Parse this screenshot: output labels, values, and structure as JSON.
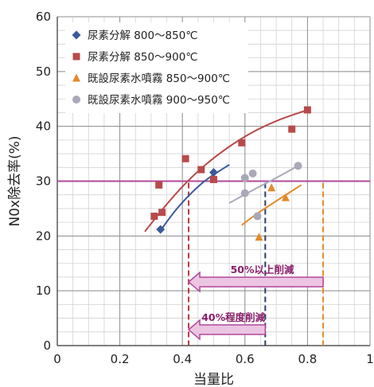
{
  "chart_data": {
    "type": "scatter",
    "xlabel": "当量比",
    "ylabel": "N0x除去率(%)",
    "xlim": [
      0,
      1
    ],
    "ylim": [
      0,
      60
    ],
    "x_ticks": [
      "0",
      "0.2",
      "0.4",
      "0.6",
      "0.8",
      "1"
    ],
    "y_ticks": [
      "0",
      "10",
      "20",
      "30",
      "40",
      "50",
      "60"
    ],
    "grid": true,
    "legend_position": "top-left",
    "series": [
      {
        "name": "尿素分解 800～850℃",
        "marker": "diamond",
        "color": "#3b5a9a",
        "points": [
          [
            0.33,
            21.2
          ],
          [
            0.5,
            31.6
          ]
        ],
        "trend": [
          [
            0.33,
            21.0
          ],
          [
            0.38,
            24.8
          ],
          [
            0.43,
            27.9
          ],
          [
            0.48,
            30.4
          ],
          [
            0.55,
            33.0
          ]
        ]
      },
      {
        "name": "尿素分解 850～900℃",
        "marker": "square",
        "color": "#b84a4a",
        "points": [
          [
            0.31,
            23.6
          ],
          [
            0.325,
            29.3
          ],
          [
            0.335,
            24.3
          ],
          [
            0.41,
            34.1
          ],
          [
            0.46,
            32.1
          ],
          [
            0.5,
            30.3
          ],
          [
            0.59,
            37.0
          ],
          [
            0.75,
            39.5
          ],
          [
            0.8,
            43.0
          ]
        ],
        "trend": [
          [
            0.28,
            20.8
          ],
          [
            0.34,
            25.1
          ],
          [
            0.4,
            29.0
          ],
          [
            0.47,
            32.8
          ],
          [
            0.55,
            36.3
          ],
          [
            0.63,
            39.1
          ],
          [
            0.71,
            41.2
          ],
          [
            0.79,
            42.8
          ]
        ]
      },
      {
        "name": "既設尿素水噴霧 850～900℃",
        "marker": "triangle",
        "color": "#e48a2a",
        "points": [
          [
            0.645,
            19.8
          ],
          [
            0.685,
            28.8
          ],
          [
            0.73,
            27.0
          ]
        ],
        "trend": [
          [
            0.59,
            22.0
          ],
          [
            0.65,
            24.5
          ],
          [
            0.72,
            27.1
          ],
          [
            0.78,
            29.3
          ]
        ]
      },
      {
        "name": "既設尿素水噴霧 900～950℃",
        "marker": "circle",
        "color": "#a9a9b9",
        "points": [
          [
            0.6,
            27.8
          ],
          [
            0.6,
            30.6
          ],
          [
            0.625,
            31.4
          ],
          [
            0.64,
            23.6
          ],
          [
            0.77,
            32.8
          ]
        ],
        "trend": [
          [
            0.55,
            26.0
          ],
          [
            0.62,
            28.2
          ],
          [
            0.7,
            30.6
          ],
          [
            0.77,
            32.8
          ]
        ]
      }
    ],
    "reference_line": {
      "y": 30,
      "color": "#b2489a"
    },
    "vertical_lines": [
      {
        "x": 0.42,
        "color": "#b83a3a"
      },
      {
        "x": 0.665,
        "color": "#2e3a66"
      },
      {
        "x": 0.85,
        "color": "#e48a2a"
      }
    ],
    "annotations": [
      {
        "text": "50%以上削減",
        "arrow_from": 0.85,
        "arrow_to": 0.42,
        "y": 11.6
      },
      {
        "text": "40%程度削減",
        "arrow_from": 0.665,
        "arrow_to": 0.42,
        "y": 2.9
      }
    ]
  }
}
